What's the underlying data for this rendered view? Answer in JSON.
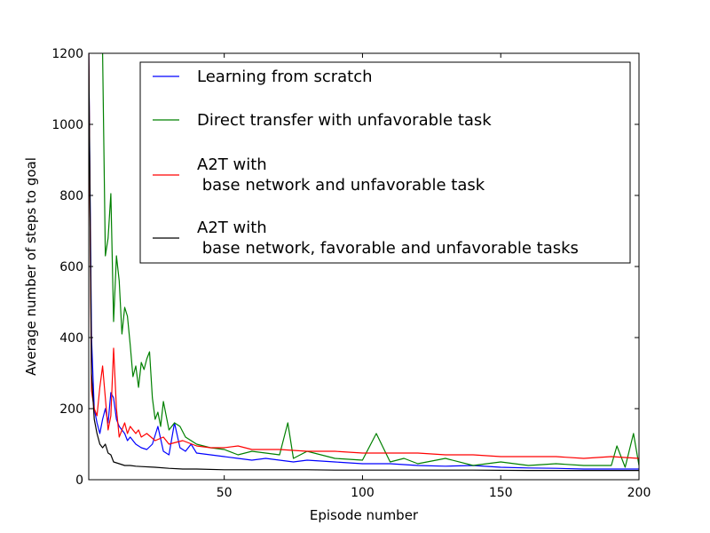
{
  "chart_data": {
    "type": "line",
    "title": "",
    "xlabel": "Episode number",
    "ylabel": "Average number of steps to goal",
    "xlim": [
      1,
      200
    ],
    "ylim": [
      0,
      1200
    ],
    "xticks": [
      50,
      100,
      150,
      200
    ],
    "yticks": [
      0,
      200,
      400,
      600,
      800,
      1000,
      1200
    ],
    "grid": false,
    "legend_position": "top-right",
    "series": [
      {
        "name": "Learning from scratch",
        "color": "#0000ff",
        "x": [
          1,
          2,
          3,
          4,
          5,
          6,
          7,
          8,
          9,
          10,
          11,
          12,
          13,
          14,
          15,
          16,
          18,
          20,
          22,
          24,
          26,
          28,
          30,
          32,
          34,
          36,
          38,
          40,
          45,
          50,
          55,
          60,
          65,
          70,
          75,
          80,
          90,
          100,
          110,
          120,
          130,
          140,
          150,
          160,
          170,
          180,
          190,
          200
        ],
        "y": [
          1200,
          400,
          200,
          160,
          130,
          170,
          200,
          160,
          245,
          230,
          170,
          150,
          140,
          130,
          110,
          120,
          100,
          90,
          85,
          100,
          150,
          80,
          70,
          160,
          90,
          80,
          100,
          75,
          70,
          65,
          60,
          55,
          60,
          55,
          50,
          55,
          50,
          45,
          45,
          40,
          38,
          40,
          35,
          33,
          32,
          30,
          30,
          30
        ]
      },
      {
        "name": "Direct transfer with unfavorable task",
        "color": "#008000",
        "x": [
          6,
          7,
          8,
          9,
          10,
          11,
          12,
          13,
          14,
          15,
          16,
          17,
          18,
          19,
          20,
          21,
          22,
          23,
          24,
          25,
          26,
          27,
          28,
          30,
          32,
          34,
          36,
          38,
          40,
          45,
          50,
          55,
          60,
          65,
          70,
          73,
          75,
          80,
          90,
          100,
          105,
          110,
          115,
          120,
          130,
          140,
          150,
          160,
          170,
          180,
          190,
          192,
          195,
          198,
          200
        ],
        "y": [
          1200,
          630,
          680,
          805,
          445,
          630,
          560,
          410,
          485,
          460,
          380,
          290,
          320,
          260,
          330,
          310,
          340,
          360,
          230,
          170,
          190,
          150,
          220,
          140,
          160,
          150,
          120,
          110,
          100,
          90,
          85,
          70,
          80,
          75,
          70,
          160,
          60,
          80,
          60,
          55,
          130,
          50,
          60,
          45,
          60,
          40,
          50,
          40,
          45,
          40,
          40,
          95,
          35,
          130,
          40
        ]
      },
      {
        "name": "A2T with\n base network and unfavorable task",
        "color": "#ff0000",
        "x": [
          1,
          2,
          3,
          4,
          5,
          6,
          7,
          8,
          9,
          10,
          11,
          12,
          13,
          14,
          15,
          16,
          17,
          18,
          19,
          20,
          22,
          25,
          28,
          30,
          35,
          40,
          45,
          50,
          55,
          60,
          70,
          80,
          90,
          100,
          110,
          120,
          130,
          140,
          150,
          160,
          170,
          180,
          190,
          200
        ],
        "y": [
          1200,
          250,
          200,
          180,
          260,
          320,
          230,
          140,
          180,
          370,
          200,
          120,
          140,
          160,
          130,
          150,
          140,
          130,
          140,
          120,
          130,
          110,
          120,
          100,
          110,
          95,
          90,
          90,
          95,
          85,
          85,
          80,
          80,
          75,
          75,
          75,
          70,
          70,
          65,
          65,
          65,
          60,
          65,
          60
        ]
      },
      {
        "name": "A2T with\n base network, favorable and unfavorable tasks",
        "color": "#000000",
        "x": [
          1,
          2,
          3,
          4,
          5,
          6,
          7,
          8,
          9,
          10,
          12,
          14,
          16,
          18,
          20,
          25,
          30,
          35,
          40,
          50,
          60,
          70,
          80,
          90,
          100,
          120,
          140,
          160,
          180,
          200
        ],
        "y": [
          1200,
          300,
          170,
          130,
          100,
          90,
          100,
          75,
          70,
          50,
          45,
          40,
          40,
          38,
          37,
          35,
          32,
          30,
          30,
          28,
          28,
          28,
          28,
          27,
          27,
          27,
          27,
          26,
          26,
          26
        ]
      }
    ]
  }
}
